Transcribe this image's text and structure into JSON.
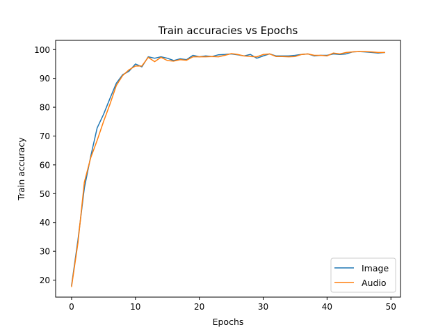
{
  "chart_data": {
    "type": "line",
    "title": "Train accuracies vs Epochs",
    "xlabel": "Epochs",
    "ylabel": "Train accuracy",
    "xlim": [
      -2.5,
      51.5
    ],
    "ylim": [
      14.1,
      103.2
    ],
    "xticks": [
      0,
      10,
      20,
      30,
      40,
      50
    ],
    "yticks": [
      20,
      30,
      40,
      50,
      60,
      70,
      80,
      90,
      100
    ],
    "grid": false,
    "legend_position": "lower-right",
    "x": [
      0,
      1,
      2,
      3,
      4,
      5,
      6,
      7,
      8,
      9,
      10,
      11,
      12,
      13,
      14,
      15,
      16,
      17,
      18,
      19,
      20,
      21,
      22,
      23,
      24,
      25,
      26,
      27,
      28,
      29,
      30,
      31,
      32,
      33,
      34,
      35,
      36,
      37,
      38,
      39,
      40,
      41,
      42,
      43,
      44,
      45,
      46,
      47,
      48,
      49
    ],
    "series": [
      {
        "name": "Image",
        "color": "#1f77b4",
        "values": [
          18.2,
          34.0,
          52.0,
          63.0,
          72.8,
          77.5,
          83.0,
          88.3,
          91.3,
          92.5,
          95.0,
          94.0,
          97.5,
          97.0,
          97.5,
          97.0,
          96.2,
          96.8,
          96.5,
          98.0,
          97.5,
          97.8,
          97.6,
          98.2,
          98.3,
          98.5,
          98.2,
          97.8,
          98.3,
          97.0,
          97.8,
          98.5,
          97.8,
          97.8,
          97.8,
          98.0,
          98.3,
          98.5,
          97.8,
          98.0,
          98.0,
          98.5,
          98.3,
          98.5,
          99.2,
          99.3,
          99.2,
          99.0,
          98.8,
          99.0
        ]
      },
      {
        "name": "Audio",
        "color": "#ff7f0e",
        "values": [
          17.8,
          33.0,
          54.0,
          62.5,
          68.5,
          75.0,
          81.0,
          87.5,
          91.0,
          93.0,
          94.3,
          94.3,
          97.3,
          95.8,
          97.3,
          96.2,
          96.0,
          96.5,
          96.3,
          97.5,
          97.5,
          97.5,
          97.6,
          97.5,
          98.0,
          98.6,
          98.3,
          97.8,
          97.6,
          97.5,
          98.3,
          98.5,
          97.6,
          97.6,
          97.5,
          97.6,
          98.3,
          98.5,
          98.0,
          98.0,
          97.8,
          98.8,
          98.5,
          99.0,
          99.2,
          99.3,
          99.3,
          99.2,
          99.0,
          99.0
        ]
      }
    ]
  }
}
